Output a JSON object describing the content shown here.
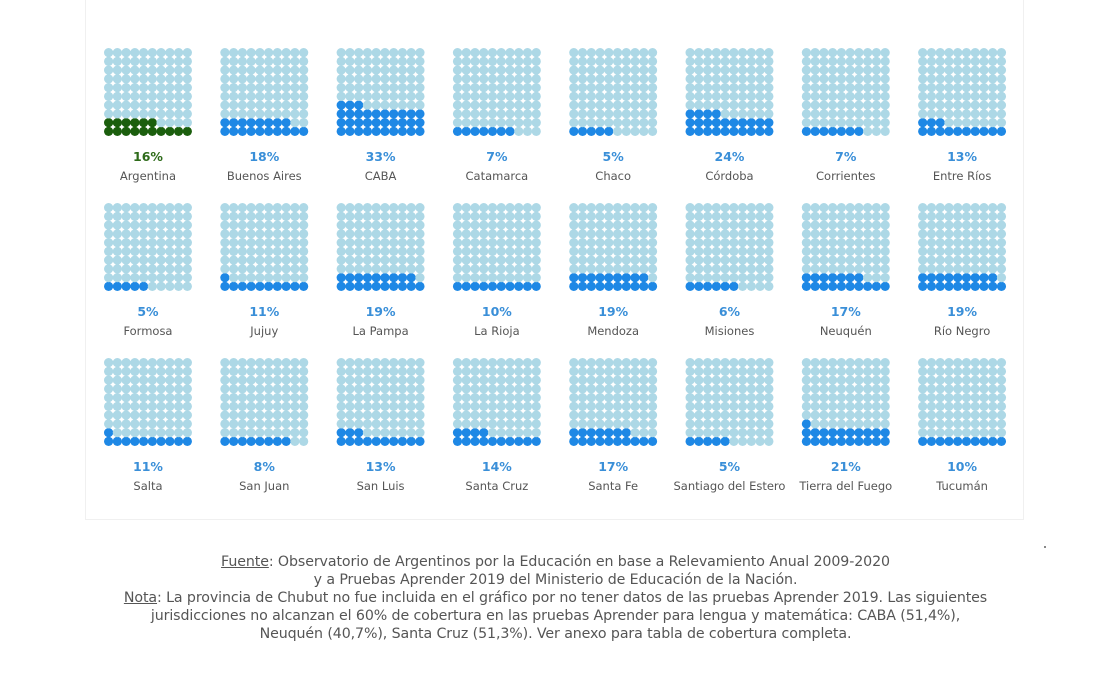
{
  "chart_data": {
    "type": "waffle",
    "grid": {
      "rows": 10,
      "cols": 10,
      "fill_order": "bottom-left, row by row upward"
    },
    "colors": {
      "empty": "#ADD8E6",
      "filled": "#1E88E5",
      "highlight_filled": "#1B5E0D",
      "pct_text": "#3A8FD8",
      "highlight_pct_text": "#2E6B1A"
    },
    "items": [
      {
        "label": "Argentina",
        "value": 16,
        "pct": "16%",
        "highlight": true
      },
      {
        "label": "Buenos Aires",
        "value": 18,
        "pct": "18%"
      },
      {
        "label": "CABA",
        "value": 33,
        "pct": "33%"
      },
      {
        "label": "Catamarca",
        "value": 7,
        "pct": "7%"
      },
      {
        "label": "Chaco",
        "value": 5,
        "pct": "5%"
      },
      {
        "label": "Córdoba",
        "value": 24,
        "pct": "24%"
      },
      {
        "label": "Corrientes",
        "value": 7,
        "pct": "7%"
      },
      {
        "label": "Entre Ríos",
        "value": 13,
        "pct": "13%"
      },
      {
        "label": "Formosa",
        "value": 5,
        "pct": "5%"
      },
      {
        "label": "Jujuy",
        "value": 11,
        "pct": "11%"
      },
      {
        "label": "La Pampa",
        "value": 19,
        "pct": "19%"
      },
      {
        "label": "La Rioja",
        "value": 10,
        "pct": "10%"
      },
      {
        "label": "Mendoza",
        "value": 19,
        "pct": "19%"
      },
      {
        "label": "Misiones",
        "value": 6,
        "pct": "6%"
      },
      {
        "label": "Neuquén",
        "value": 17,
        "pct": "17%"
      },
      {
        "label": "Río Negro",
        "value": 19,
        "pct": "19%"
      },
      {
        "label": "Salta",
        "value": 11,
        "pct": "11%"
      },
      {
        "label": "San Juan",
        "value": 8,
        "pct": "8%"
      },
      {
        "label": "San Luis",
        "value": 13,
        "pct": "13%"
      },
      {
        "label": "Santa Cruz",
        "value": 14,
        "pct": "14%"
      },
      {
        "label": "Santa Fe",
        "value": 17,
        "pct": "17%"
      },
      {
        "label": "Santiago del Estero",
        "value": 5,
        "pct": "5%"
      },
      {
        "label": "Tierra del Fuego",
        "value": 21,
        "pct": "21%"
      },
      {
        "label": "Tucumán",
        "value": 10,
        "pct": "10%"
      }
    ]
  },
  "notes": {
    "source_label": "Fuente",
    "source_text_1": ": Observatorio de Argentinos por la Educación en base a Relevamiento Anual 2009-2020",
    "source_text_2": "y a Pruebas Aprender 2019 del Ministerio de Educación de la Nación.",
    "note_label": "Nota",
    "note_text_1": ": La provincia de Chubut no fue incluida en el gráfico por no tener datos de las pruebas Aprender 2019. Las siguientes",
    "note_text_2": "jurisdicciones no alcanzan el 60% de cobertura en las pruebas Aprender para lengua y matemática: CABA (51,4%),",
    "note_text_3": "Neuquén (40,7%), Santa Cruz (51,3%). Ver anexo para tabla de cobertura completa."
  }
}
